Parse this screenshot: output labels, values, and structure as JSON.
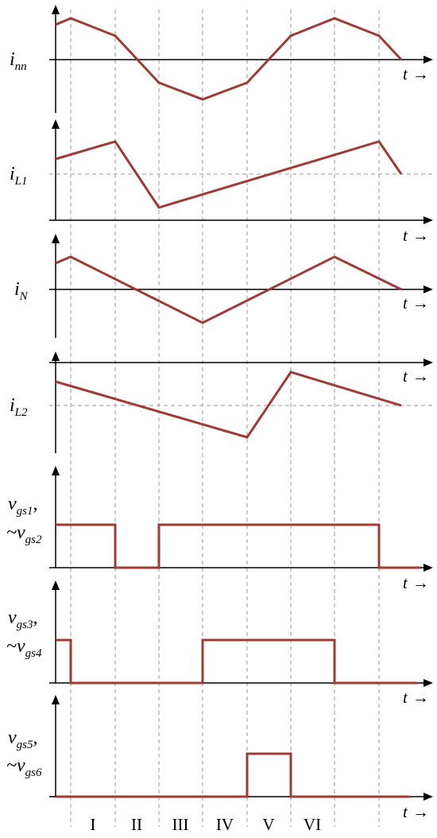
{
  "t_axis": {
    "label": "t",
    "arrow": "→"
  },
  "intervals": [
    "I",
    "II",
    "III",
    "IV",
    "V",
    "VI"
  ],
  "colors": {
    "waveform": "#a03a34",
    "axis": "#000000",
    "guide": "#9a9a9a"
  },
  "panels": [
    {
      "id": "inn",
      "symbol": "i",
      "sub": "nn"
    },
    {
      "id": "iL1",
      "symbol": "i",
      "sub": "L1"
    },
    {
      "id": "iN",
      "symbol": "i",
      "sub": "N"
    },
    {
      "id": "iL2",
      "symbol": "i",
      "sub": "L2"
    },
    {
      "id": "vgs12",
      "symbol": "v",
      "sub": "gs1",
      "sep": ",",
      "symbol2": "~v",
      "sub2": "gs2"
    },
    {
      "id": "vgs34",
      "symbol": "v",
      "sub": "gs3",
      "sep": ",",
      "symbol2": "~v",
      "sub2": "gs4"
    },
    {
      "id": "vgs56",
      "symbol": "v",
      "sub": "gs5",
      "sep": ",",
      "symbol2": "~v",
      "sub2": "gs6"
    }
  ]
}
